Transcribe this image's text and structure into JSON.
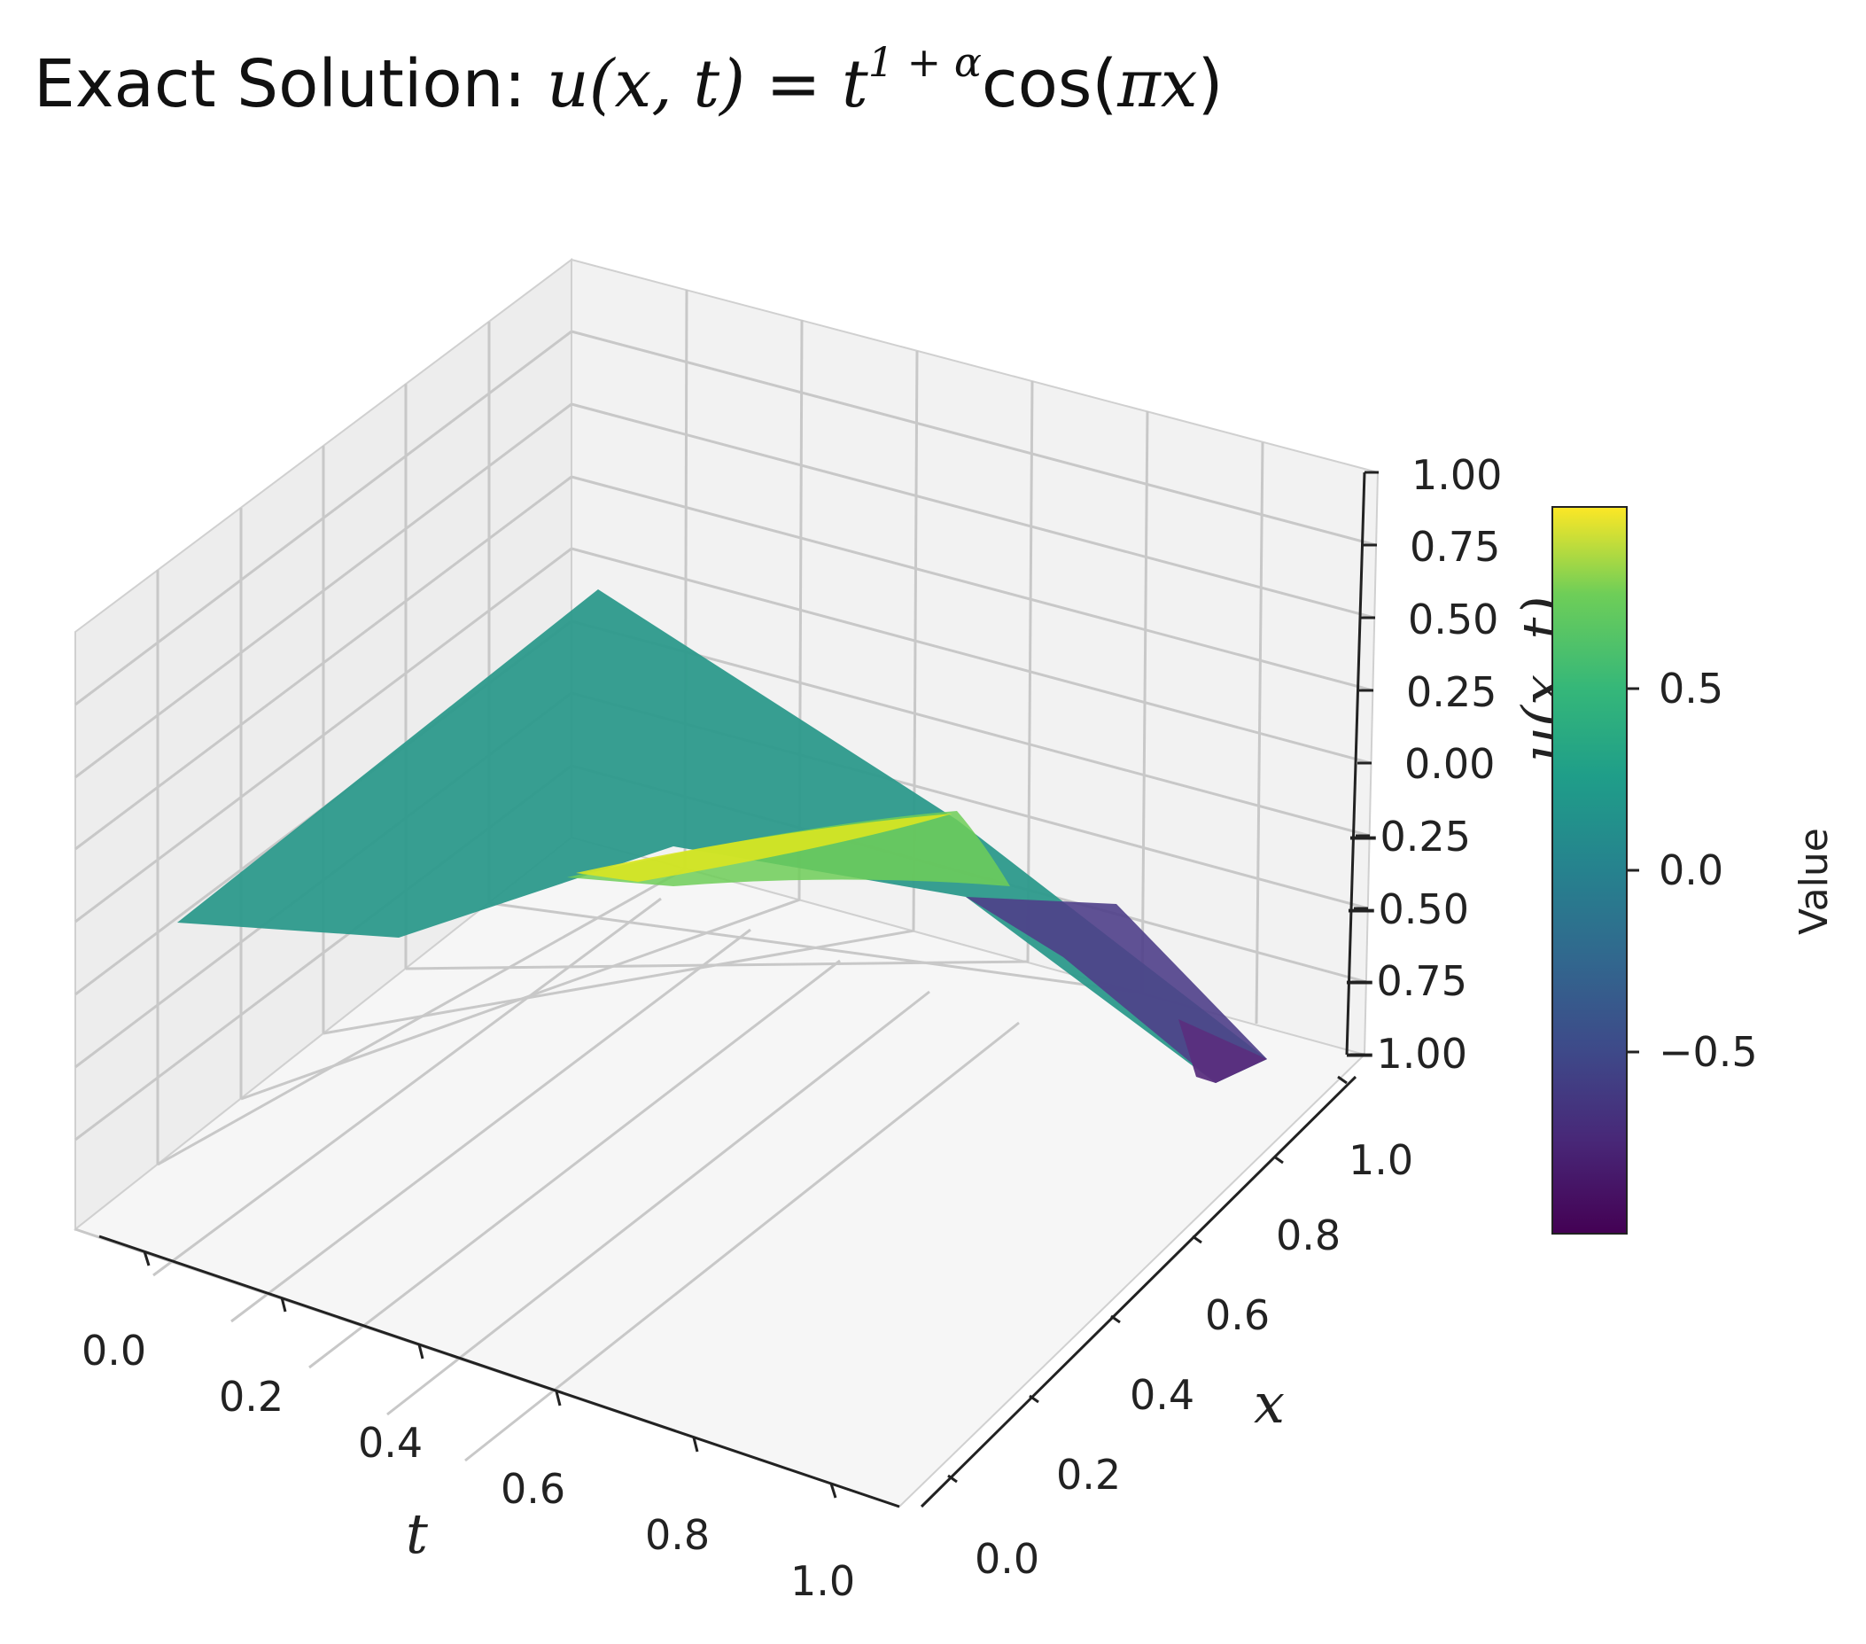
{
  "chart_data": {
    "type": "surface3d",
    "title": {
      "prefix": "Exact Solution: ",
      "lhs": "u(x, t)",
      "equals": " = ",
      "base": "t",
      "exponent": "1 + α",
      "tail_fn": "cos(",
      "tail_arg": "πx",
      "tail_close": ")"
    },
    "function": "u(x,t) = t^(1+alpha) * cos(pi * x)",
    "x_axis": {
      "label": "t",
      "ticks": [
        "0.0",
        "0.2",
        "0.4",
        "0.6",
        "0.8",
        "1.0"
      ],
      "range": [
        0,
        1
      ]
    },
    "y_axis": {
      "label": "x",
      "ticks": [
        "0.0",
        "0.2",
        "0.4",
        "0.6",
        "0.8",
        "1.0"
      ],
      "range": [
        0,
        1
      ]
    },
    "z_axis": {
      "label": "u(x, t)",
      "ticks": [
        "−1.00",
        "−0.75",
        "−0.50",
        "−0.25",
        "0.00",
        "0.25",
        "0.50",
        "0.75",
        "1.00"
      ],
      "range": [
        -1,
        1
      ]
    },
    "colorbar": {
      "label": "Value",
      "ticks": [
        "−0.5",
        "0.0",
        "0.5"
      ],
      "tick_values": [
        -0.5,
        0.0,
        0.5
      ],
      "range": [
        -1,
        1
      ],
      "colormap": "viridis"
    },
    "grid": true,
    "surface_corners": [
      {
        "t": 0.0,
        "x": 0.0,
        "u": 0.0
      },
      {
        "t": 0.0,
        "x": 1.0,
        "u": 0.0
      },
      {
        "t": 1.0,
        "x": 0.0,
        "u": 1.0
      },
      {
        "t": 1.0,
        "x": 1.0,
        "u": -1.0
      }
    ]
  }
}
